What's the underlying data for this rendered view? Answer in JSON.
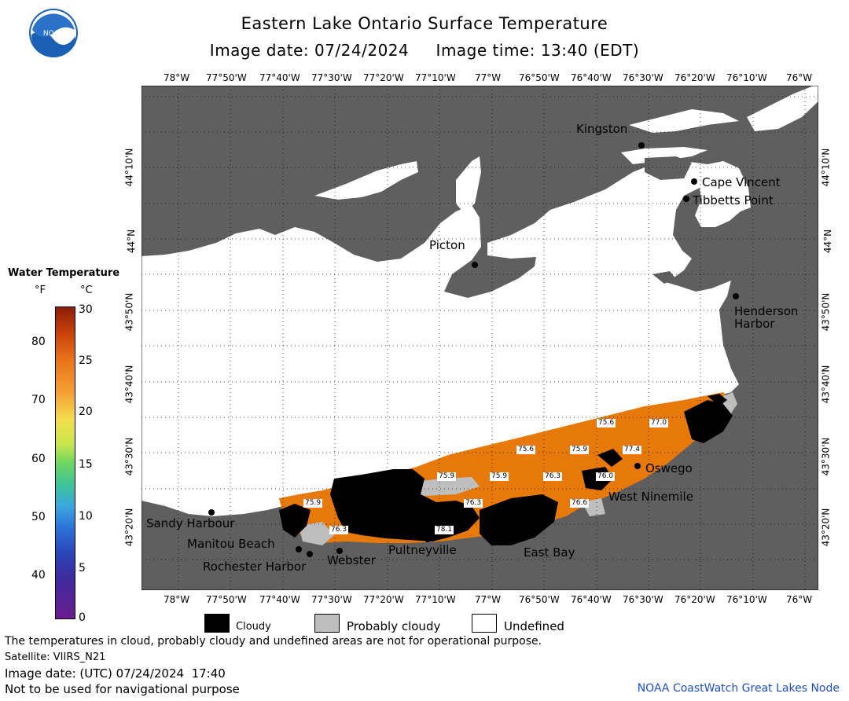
{
  "title": "Eastern Lake Ontario Surface Temperature",
  "subtitle": "Image date: 07/24/2024     Image time: 13:40 (EDT)",
  "logo_text": "NOAA",
  "lon_ticks": [
    "78°W",
    "77°50'W",
    "77°40'W",
    "77°30'W",
    "77°20'W",
    "77°10'W",
    "77°W",
    "76°50'W",
    "76°40'W",
    "76°30'W",
    "76°20'W",
    "76°10'W",
    "76°W"
  ],
  "lat_ticks": [
    "44°10'N",
    "44°N",
    "43°50'N",
    "43°40'N",
    "43°30'N",
    "43°20'N"
  ],
  "colorbar": {
    "title": "Water Temperature",
    "unit_f": "°F",
    "unit_c": "°C",
    "f_ticks": [
      "80",
      "70",
      "60",
      "50",
      "40"
    ],
    "c_ticks": [
      "30",
      "25",
      "20",
      "15",
      "10",
      "5",
      "0"
    ]
  },
  "places": {
    "kingston": "Kingston",
    "cape_vincent": "Cape Vincent",
    "tibbetts_point": "Tibbetts Point",
    "picton": "Picton",
    "henderson_harbor_1": "Henderson",
    "henderson_harbor_2": "Harbor",
    "oswego": "Oswego",
    "west_ninemile": "West Ninemile",
    "sandy_harbour": "Sandy Harbour",
    "manitou_beach": "Manitou Beach",
    "rochester_harbor": "Rochester Harbor",
    "webster": "Webster",
    "pultneyville": "Pultneyville",
    "east_bay": "East Bay"
  },
  "temperature_labels": [
    "75.6",
    "77.0",
    "75.6",
    "75.9",
    "77.4",
    "75.9",
    "75.9",
    "76.3",
    "76.0",
    "76.3",
    "75.9",
    "76.3",
    "76.6",
    "78.1"
  ],
  "legend": {
    "cloudy": "Cloudy",
    "probably_cloudy": "Probably cloudy",
    "undefined": "Undefined"
  },
  "footer": {
    "disclaimer": "The temperatures in cloud, probably cloudy and undefined areas are not for operational purpose.",
    "satellite": "Satellite: VIIRS_N21",
    "utc_date": "Image date: (UTC) 07/24/2024  17:40",
    "navigation": "Not to be used for navigational purpose",
    "credit": "NOAA CoastWatch Great Lakes Node"
  },
  "colors": {
    "land": "#5f5f5f",
    "water_undefined": "#ffffff",
    "warm_water": "#e7780a",
    "cloud": "#000000",
    "probably_cloudy": "#bebebe",
    "credit_text": "#1f4fbf"
  }
}
